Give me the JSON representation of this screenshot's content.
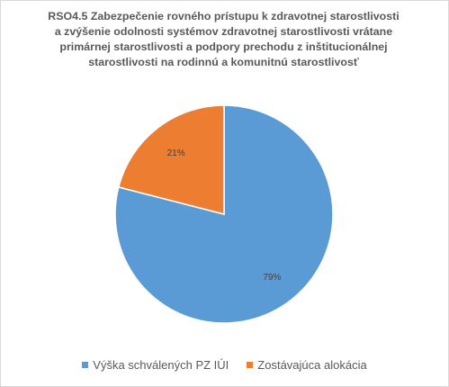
{
  "chart_data": {
    "type": "pie",
    "title_lines": [
      "RSO4.5 Zabezpečenie rovného prístupu k zdravotnej starostlivosti",
      "a zvýšenie odolnosti systémov zdravotnej starostlivosti vrátane",
      "primárnej starostlivosti a podpory prechodu z inštitucionálnej",
      "starostlivosti na rodinnú a komunitnú starostlivosť"
    ],
    "categories": [
      "Výška schválených PZ IÚI",
      "Zostávajúca alokácia"
    ],
    "values": [
      79,
      21
    ],
    "data_labels": [
      "79%",
      "21%"
    ],
    "colors": [
      "#5b9bd5",
      "#ed7d31"
    ],
    "start_angle_deg": 0,
    "direction": "clockwise",
    "legend_position": "bottom"
  }
}
